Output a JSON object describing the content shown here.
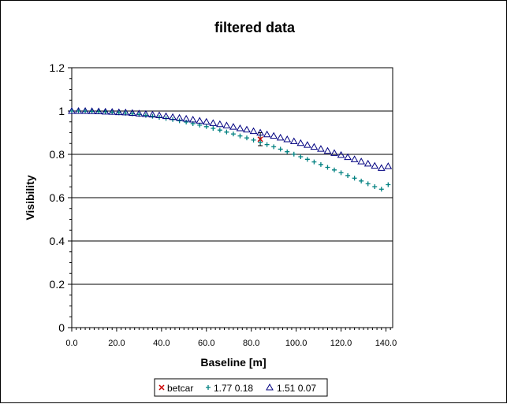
{
  "chart_data": {
    "type": "scatter",
    "title": "filtered data",
    "xlabel": "Baseline [m]",
    "ylabel": "Visibility",
    "xlim": [
      0,
      143
    ],
    "ylim": [
      0,
      1.2
    ],
    "x_ticks": [
      "0.0",
      "20.0",
      "40.0",
      "60.0",
      "80.0",
      "100.0",
      "120.0",
      "140.0"
    ],
    "y_ticks": [
      "0",
      "0.2",
      "0.4",
      "0.6",
      "0.8",
      "1",
      "1.2"
    ],
    "grid": "horizontal",
    "legend_position": "bottom",
    "series": [
      {
        "name": "betcar",
        "marker": "x",
        "color": "#cc0000",
        "points": [
          {
            "x": 84,
            "y": 0.87,
            "err": 0.03
          }
        ]
      },
      {
        "name": "1.77 0.18",
        "marker": "+",
        "color": "#008080",
        "x": [
          0,
          3,
          6,
          9,
          12,
          15,
          18,
          21,
          24,
          27,
          30,
          33,
          36,
          39,
          42,
          45,
          48,
          51,
          54,
          57,
          60,
          63,
          66,
          69,
          72,
          75,
          78,
          81,
          84,
          87,
          90,
          93,
          96,
          99,
          102,
          105,
          108,
          111,
          114,
          117,
          120,
          123,
          126,
          129,
          132,
          135,
          138,
          141
        ],
        "y": [
          1.0,
          1.0,
          0.999,
          0.998,
          0.997,
          0.996,
          0.994,
          0.992,
          0.99,
          0.987,
          0.984,
          0.98,
          0.976,
          0.971,
          0.966,
          0.961,
          0.955,
          0.949,
          0.942,
          0.935,
          0.928,
          0.92,
          0.912,
          0.903,
          0.894,
          0.885,
          0.876,
          0.866,
          0.856,
          0.845,
          0.835,
          0.824,
          0.812,
          0.801,
          0.789,
          0.777,
          0.765,
          0.753,
          0.74,
          0.728,
          0.715,
          0.702,
          0.69,
          0.677,
          0.664,
          0.651,
          0.639,
          0.66
        ]
      },
      {
        "name": "1.51 0.07",
        "marker": "triangle",
        "color": "#000080",
        "x": [
          0,
          3,
          6,
          9,
          12,
          15,
          18,
          21,
          24,
          27,
          30,
          33,
          36,
          39,
          42,
          45,
          48,
          51,
          54,
          57,
          60,
          63,
          66,
          69,
          72,
          75,
          78,
          81,
          84,
          87,
          90,
          93,
          96,
          99,
          102,
          105,
          108,
          111,
          114,
          117,
          120,
          123,
          126,
          129,
          132,
          135,
          138,
          141
        ],
        "y": [
          1.0,
          1.0,
          1.0,
          0.999,
          0.998,
          0.997,
          0.996,
          0.994,
          0.993,
          0.991,
          0.988,
          0.986,
          0.983,
          0.98,
          0.976,
          0.972,
          0.968,
          0.964,
          0.96,
          0.955,
          0.95,
          0.944,
          0.939,
          0.933,
          0.927,
          0.92,
          0.914,
          0.907,
          0.9,
          0.892,
          0.885,
          0.877,
          0.869,
          0.86,
          0.852,
          0.843,
          0.834,
          0.825,
          0.816,
          0.806,
          0.797,
          0.787,
          0.777,
          0.767,
          0.757,
          0.747,
          0.737,
          0.745
        ]
      }
    ]
  }
}
